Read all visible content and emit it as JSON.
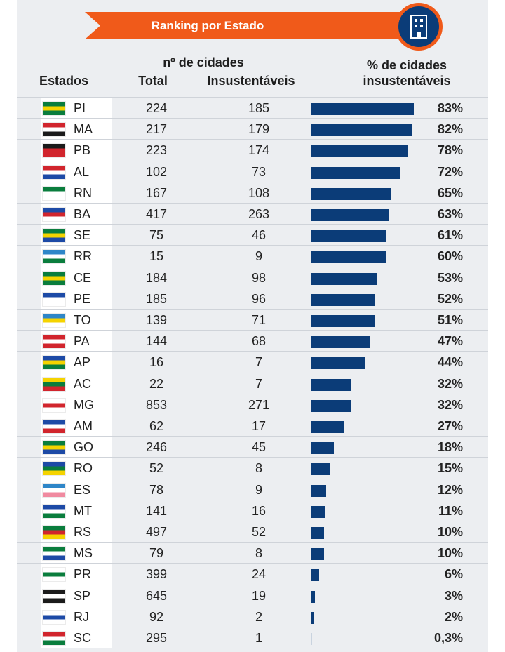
{
  "header": {
    "title": "Ranking por Estado",
    "sub_title": "nº de cidades",
    "col_estados": "Estados",
    "col_total": "Total",
    "col_insust": "Insustentáveis",
    "col_pct": "% de cidades insustentáveis"
  },
  "colors": {
    "accent": "#f05a1a",
    "bar": "#0b3c78"
  },
  "icon": "building-icon",
  "chart_data": {
    "type": "bar",
    "title": "Ranking por Estado",
    "categories": [
      "PI",
      "MA",
      "PB",
      "AL",
      "RN",
      "BA",
      "SE",
      "RR",
      "CE",
      "PE",
      "TO",
      "PA",
      "AP",
      "AC",
      "MG",
      "AM",
      "GO",
      "RO",
      "ES",
      "MT",
      "RS",
      "MS",
      "PR",
      "SP",
      "RJ",
      "SC"
    ],
    "series": [
      {
        "name": "% de cidades insustentáveis",
        "values": [
          83,
          82,
          78,
          72,
          65,
          63,
          61,
          60,
          53,
          52,
          51,
          47,
          44,
          32,
          32,
          27,
          18,
          15,
          12,
          11,
          10,
          10,
          6,
          3,
          2,
          0.3
        ]
      }
    ],
    "xlim": [
      0,
      83
    ],
    "rows": [
      {
        "uf": "PI",
        "total": "224",
        "insust": "185",
        "pct": "83%",
        "value": 83,
        "flag": [
          "#0a7d3d",
          "#f5d300",
          "#0a7d3d"
        ]
      },
      {
        "uf": "MA",
        "total": "217",
        "insust": "179",
        "pct": "82%",
        "value": 82,
        "flag": [
          "#d1252d",
          "#ffffff",
          "#1b1b1b"
        ]
      },
      {
        "uf": "PB",
        "total": "223",
        "insust": "174",
        "pct": "78%",
        "value": 78,
        "flag": [
          "#1b1b1b",
          "#d1252d",
          "#d1252d"
        ]
      },
      {
        "uf": "AL",
        "total": "102",
        "insust": "73",
        "pct": "72%",
        "value": 72,
        "flag": [
          "#d1252d",
          "#ffffff",
          "#1d4aa6"
        ]
      },
      {
        "uf": "RN",
        "total": "167",
        "insust": "108",
        "pct": "65%",
        "value": 65,
        "flag": [
          "#0a7d3d",
          "#ffffff",
          "#ffffff"
        ]
      },
      {
        "uf": "BA",
        "total": "417",
        "insust": "263",
        "pct": "63%",
        "value": 63,
        "flag": [
          "#1d4aa6",
          "#d1252d",
          "#ffffff"
        ]
      },
      {
        "uf": "SE",
        "total": "75",
        "insust": "46",
        "pct": "61%",
        "value": 61,
        "flag": [
          "#0a7d3d",
          "#f5d300",
          "#1d4aa6"
        ]
      },
      {
        "uf": "RR",
        "total": "15",
        "insust": "9",
        "pct": "60%",
        "value": 60,
        "flag": [
          "#2e86c8",
          "#ffffff",
          "#0a7d3d"
        ]
      },
      {
        "uf": "CE",
        "total": "184",
        "insust": "98",
        "pct": "53%",
        "value": 53,
        "flag": [
          "#0a7d3d",
          "#f5d300",
          "#0a7d3d"
        ]
      },
      {
        "uf": "PE",
        "total": "185",
        "insust": "96",
        "pct": "52%",
        "value": 52,
        "flag": [
          "#1d4aa6",
          "#ffffff",
          "#ffffff"
        ]
      },
      {
        "uf": "TO",
        "total": "139",
        "insust": "71",
        "pct": "51%",
        "value": 51,
        "flag": [
          "#2e86c8",
          "#f5d300",
          "#ffffff"
        ]
      },
      {
        "uf": "PA",
        "total": "144",
        "insust": "68",
        "pct": "47%",
        "value": 47,
        "flag": [
          "#d1252d",
          "#ffffff",
          "#d1252d"
        ]
      },
      {
        "uf": "AP",
        "total": "16",
        "insust": "7",
        "pct": "44%",
        "value": 44,
        "flag": [
          "#1d4aa6",
          "#f5d300",
          "#0a7d3d"
        ]
      },
      {
        "uf": "AC",
        "total": "22",
        "insust": "7",
        "pct": "32%",
        "value": 32,
        "flag": [
          "#f5d300",
          "#0a7d3d",
          "#d1252d"
        ]
      },
      {
        "uf": "MG",
        "total": "853",
        "insust": "271",
        "pct": "32%",
        "value": 32,
        "flag": [
          "#ffffff",
          "#d1252d",
          "#ffffff"
        ]
      },
      {
        "uf": "AM",
        "total": "62",
        "insust": "17",
        "pct": "27%",
        "value": 27,
        "flag": [
          "#1d4aa6",
          "#ffffff",
          "#d1252d"
        ]
      },
      {
        "uf": "GO",
        "total": "246",
        "insust": "45",
        "pct": "18%",
        "value": 18,
        "flag": [
          "#0a7d3d",
          "#f5d300",
          "#1d4aa6"
        ]
      },
      {
        "uf": "RO",
        "total": "52",
        "insust": "8",
        "pct": "15%",
        "value": 15,
        "flag": [
          "#1d4aa6",
          "#0a7d3d",
          "#f5d300"
        ]
      },
      {
        "uf": "ES",
        "total": "78",
        "insust": "9",
        "pct": "12%",
        "value": 12,
        "flag": [
          "#2e86c8",
          "#ffffff",
          "#f08aa0"
        ]
      },
      {
        "uf": "MT",
        "total": "141",
        "insust": "16",
        "pct": "11%",
        "value": 11,
        "flag": [
          "#1d4aa6",
          "#ffffff",
          "#0a7d3d"
        ]
      },
      {
        "uf": "RS",
        "total": "497",
        "insust": "52",
        "pct": "10%",
        "value": 10,
        "flag": [
          "#0a7d3d",
          "#d1252d",
          "#f5d300"
        ]
      },
      {
        "uf": "MS",
        "total": "79",
        "insust": "8",
        "pct": "10%",
        "value": 10,
        "flag": [
          "#0a7d3d",
          "#ffffff",
          "#1d4aa6"
        ]
      },
      {
        "uf": "PR",
        "total": "399",
        "insust": "24",
        "pct": "6%",
        "value": 6,
        "flag": [
          "#ffffff",
          "#0a7d3d",
          "#ffffff"
        ]
      },
      {
        "uf": "SP",
        "total": "645",
        "insust": "19",
        "pct": "3%",
        "value": 3,
        "flag": [
          "#1b1b1b",
          "#ffffff",
          "#1b1b1b"
        ]
      },
      {
        "uf": "RJ",
        "total": "92",
        "insust": "2",
        "pct": "2%",
        "value": 2,
        "flag": [
          "#ffffff",
          "#1d4aa6",
          "#ffffff"
        ]
      },
      {
        "uf": "SC",
        "total": "295",
        "insust": "1",
        "pct": "0,3%",
        "value": 0.3,
        "flag": [
          "#d1252d",
          "#ffffff",
          "#0a7d3d"
        ]
      }
    ]
  }
}
